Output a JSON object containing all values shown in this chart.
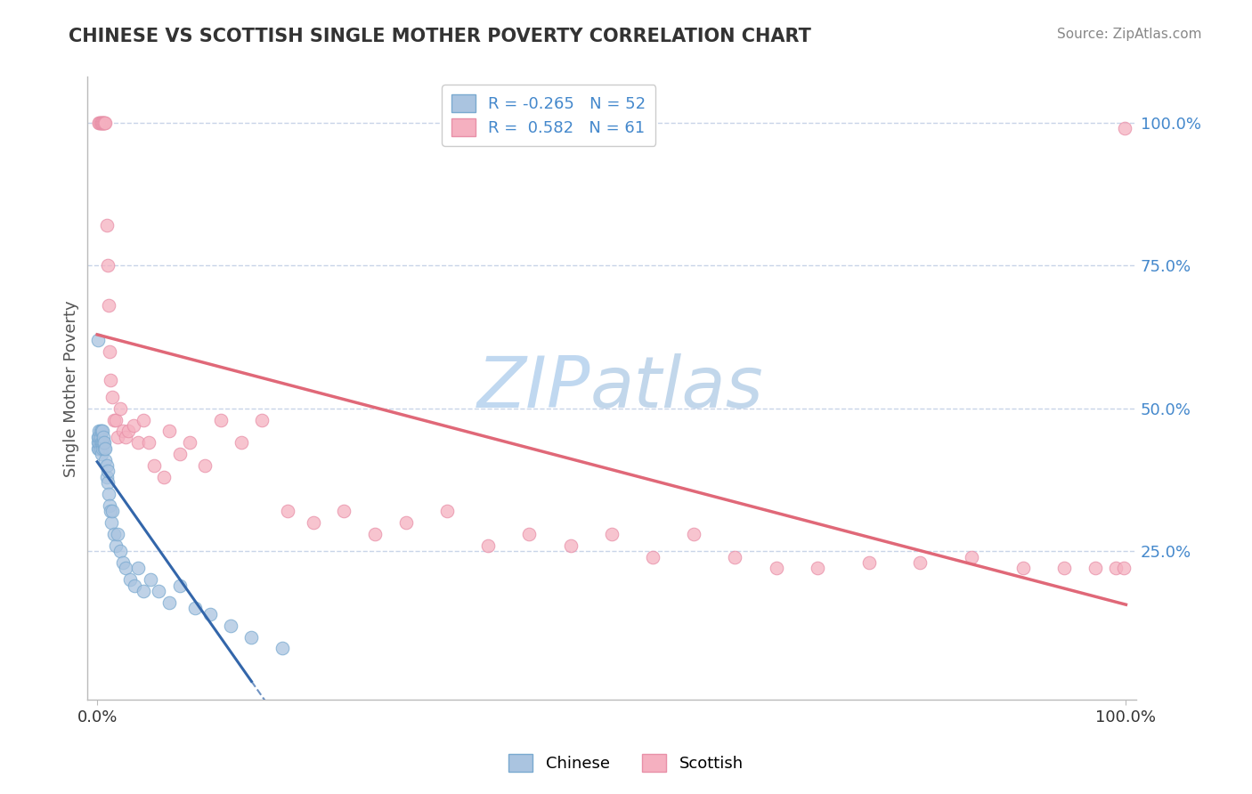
{
  "title": "CHINESE VS SCOTTISH SINGLE MOTHER POVERTY CORRELATION CHART",
  "source": "Source: ZipAtlas.com",
  "ylabel": "Single Mother Poverty",
  "r_chinese": -0.265,
  "n_chinese": 52,
  "r_scottish": 0.582,
  "n_scottish": 61,
  "color_chinese_fill": "#aac4e0",
  "color_chinese_edge": "#7aaad0",
  "color_scottish_fill": "#f5b0c0",
  "color_scottish_edge": "#e890a8",
  "color_chinese_line": "#3366aa",
  "color_scottish_line": "#e06878",
  "bg_color": "#ffffff",
  "grid_color": "#c8d4e8",
  "right_ytick_color": "#4488cc",
  "watermark_zip_color": "#c0d8f0",
  "watermark_atlas_color": "#b8d0e8",
  "chinese_x": [
    0.001,
    0.001,
    0.001,
    0.001,
    0.002,
    0.002,
    0.002,
    0.002,
    0.003,
    0.003,
    0.003,
    0.003,
    0.004,
    0.004,
    0.004,
    0.005,
    0.005,
    0.005,
    0.006,
    0.006,
    0.007,
    0.007,
    0.008,
    0.008,
    0.009,
    0.009,
    0.01,
    0.01,
    0.011,
    0.012,
    0.013,
    0.014,
    0.015,
    0.016,
    0.018,
    0.02,
    0.022,
    0.025,
    0.028,
    0.032,
    0.036,
    0.04,
    0.045,
    0.052,
    0.06,
    0.07,
    0.08,
    0.095,
    0.11,
    0.13,
    0.15,
    0.18
  ],
  "chinese_y": [
    0.62,
    0.43,
    0.44,
    0.45,
    0.43,
    0.44,
    0.45,
    0.46,
    0.43,
    0.44,
    0.45,
    0.46,
    0.42,
    0.44,
    0.46,
    0.43,
    0.44,
    0.46,
    0.44,
    0.45,
    0.43,
    0.44,
    0.41,
    0.43,
    0.38,
    0.4,
    0.37,
    0.39,
    0.35,
    0.33,
    0.32,
    0.3,
    0.32,
    0.28,
    0.26,
    0.28,
    0.25,
    0.23,
    0.22,
    0.2,
    0.19,
    0.22,
    0.18,
    0.2,
    0.18,
    0.16,
    0.19,
    0.15,
    0.14,
    0.12,
    0.1,
    0.08
  ],
  "scottish_x": [
    0.002,
    0.002,
    0.003,
    0.003,
    0.004,
    0.005,
    0.005,
    0.006,
    0.007,
    0.007,
    0.008,
    0.009,
    0.01,
    0.011,
    0.012,
    0.013,
    0.015,
    0.016,
    0.018,
    0.02,
    0.022,
    0.025,
    0.028,
    0.03,
    0.035,
    0.04,
    0.045,
    0.05,
    0.055,
    0.065,
    0.07,
    0.08,
    0.09,
    0.105,
    0.12,
    0.14,
    0.16,
    0.185,
    0.21,
    0.24,
    0.27,
    0.3,
    0.34,
    0.38,
    0.42,
    0.46,
    0.5,
    0.54,
    0.58,
    0.62,
    0.66,
    0.7,
    0.75,
    0.8,
    0.85,
    0.9,
    0.94,
    0.97,
    0.99,
    0.998,
    0.999
  ],
  "scottish_y": [
    1.0,
    1.0,
    1.0,
    1.0,
    1.0,
    1.0,
    1.0,
    1.0,
    1.0,
    1.0,
    1.0,
    0.82,
    0.75,
    0.68,
    0.6,
    0.55,
    0.52,
    0.48,
    0.48,
    0.45,
    0.5,
    0.46,
    0.45,
    0.46,
    0.47,
    0.44,
    0.48,
    0.44,
    0.4,
    0.38,
    0.46,
    0.42,
    0.44,
    0.4,
    0.48,
    0.44,
    0.48,
    0.32,
    0.3,
    0.32,
    0.28,
    0.3,
    0.32,
    0.26,
    0.28,
    0.26,
    0.28,
    0.24,
    0.28,
    0.24,
    0.22,
    0.22,
    0.23,
    0.23,
    0.24,
    0.22,
    0.22,
    0.22,
    0.22,
    0.22,
    0.99
  ],
  "ytick_values": [
    0.25,
    0.5,
    0.75,
    1.0
  ],
  "xlim": [
    0.0,
    1.0
  ],
  "ylim": [
    0.0,
    1.08
  ]
}
